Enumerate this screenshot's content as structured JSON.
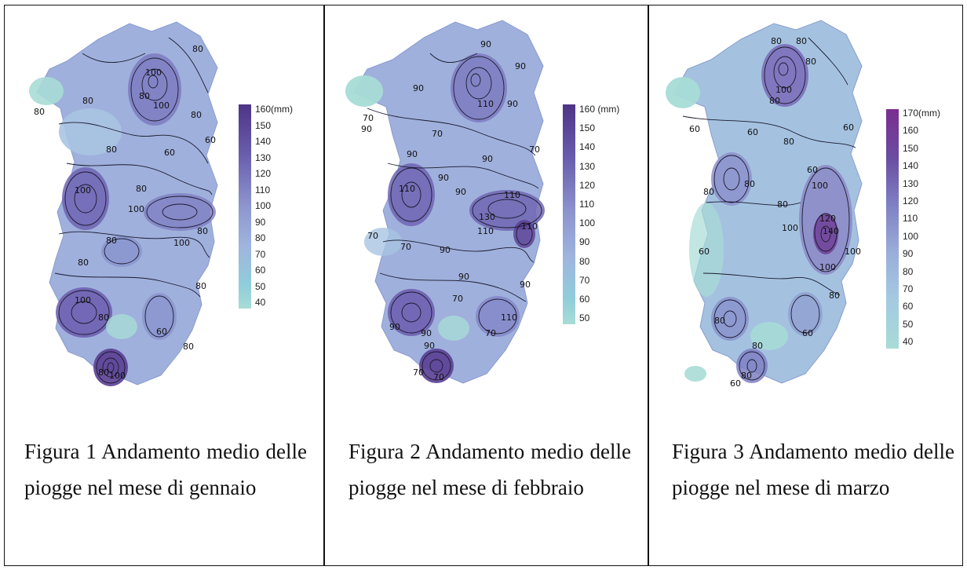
{
  "panels": [
    {
      "id": "gennaio",
      "caption": "Figura 1 Andamento medio delle piogge nel mese di gennaio",
      "legend": {
        "unit_label": "160(mm)",
        "ticks": [
          "150",
          "140",
          "130",
          "120",
          "110",
          "100",
          "90",
          "80",
          "70",
          "60",
          "50",
          "40"
        ],
        "max": 160,
        "min": 40
      },
      "contour_labels": [
        "100",
        "80",
        "80",
        "100",
        "80",
        "80",
        "80",
        "60",
        "60",
        "80",
        "100",
        "100",
        "80",
        "80",
        "100",
        "80",
        "80",
        "80",
        "100",
        "80",
        "60",
        "80",
        "80",
        "100"
      ]
    },
    {
      "id": "febbraio",
      "caption": "Figura 2 Andamento medio delle piogge nel mese di febbraio",
      "legend": {
        "unit_label": "160 (mm)",
        "ticks": [
          "150",
          "140",
          "130",
          "120",
          "110",
          "100",
          "90",
          "80",
          "70",
          "60",
          "50"
        ],
        "max": 160,
        "min": 50
      },
      "contour_labels": [
        "90",
        "90",
        "90",
        "110",
        "90",
        "70",
        "90",
        "70",
        "90",
        "70",
        "90",
        "90",
        "110",
        "90",
        "110",
        "130",
        "110",
        "110",
        "70",
        "70",
        "90",
        "90",
        "90",
        "70",
        "110",
        "90",
        "70",
        "90",
        "90",
        "70",
        "70"
      ]
    },
    {
      "id": "marzo",
      "caption": "Figura 3 Andamento medio delle piogge nel mese di marzo",
      "legend": {
        "unit_label": "170(mm)",
        "ticks": [
          "160",
          "150",
          "140",
          "130",
          "120",
          "110",
          "100",
          "90",
          "80",
          "70",
          "60",
          "50",
          "40"
        ],
        "max": 170,
        "min": 40
      },
      "contour_labels": [
        "80",
        "80",
        "80",
        "100",
        "80",
        "60",
        "60",
        "80",
        "60",
        "60",
        "80",
        "80",
        "100",
        "120",
        "140",
        "100",
        "100",
        "100",
        "80",
        "80",
        "60",
        "80",
        "60",
        "80",
        "80",
        "60"
      ]
    }
  ],
  "colors": {
    "low": "#a8dcd6",
    "mid": "#9fb0dc",
    "high": "#5b3f93",
    "marzo_high": "#7a2e8f",
    "contour": "#1a1a2e"
  }
}
